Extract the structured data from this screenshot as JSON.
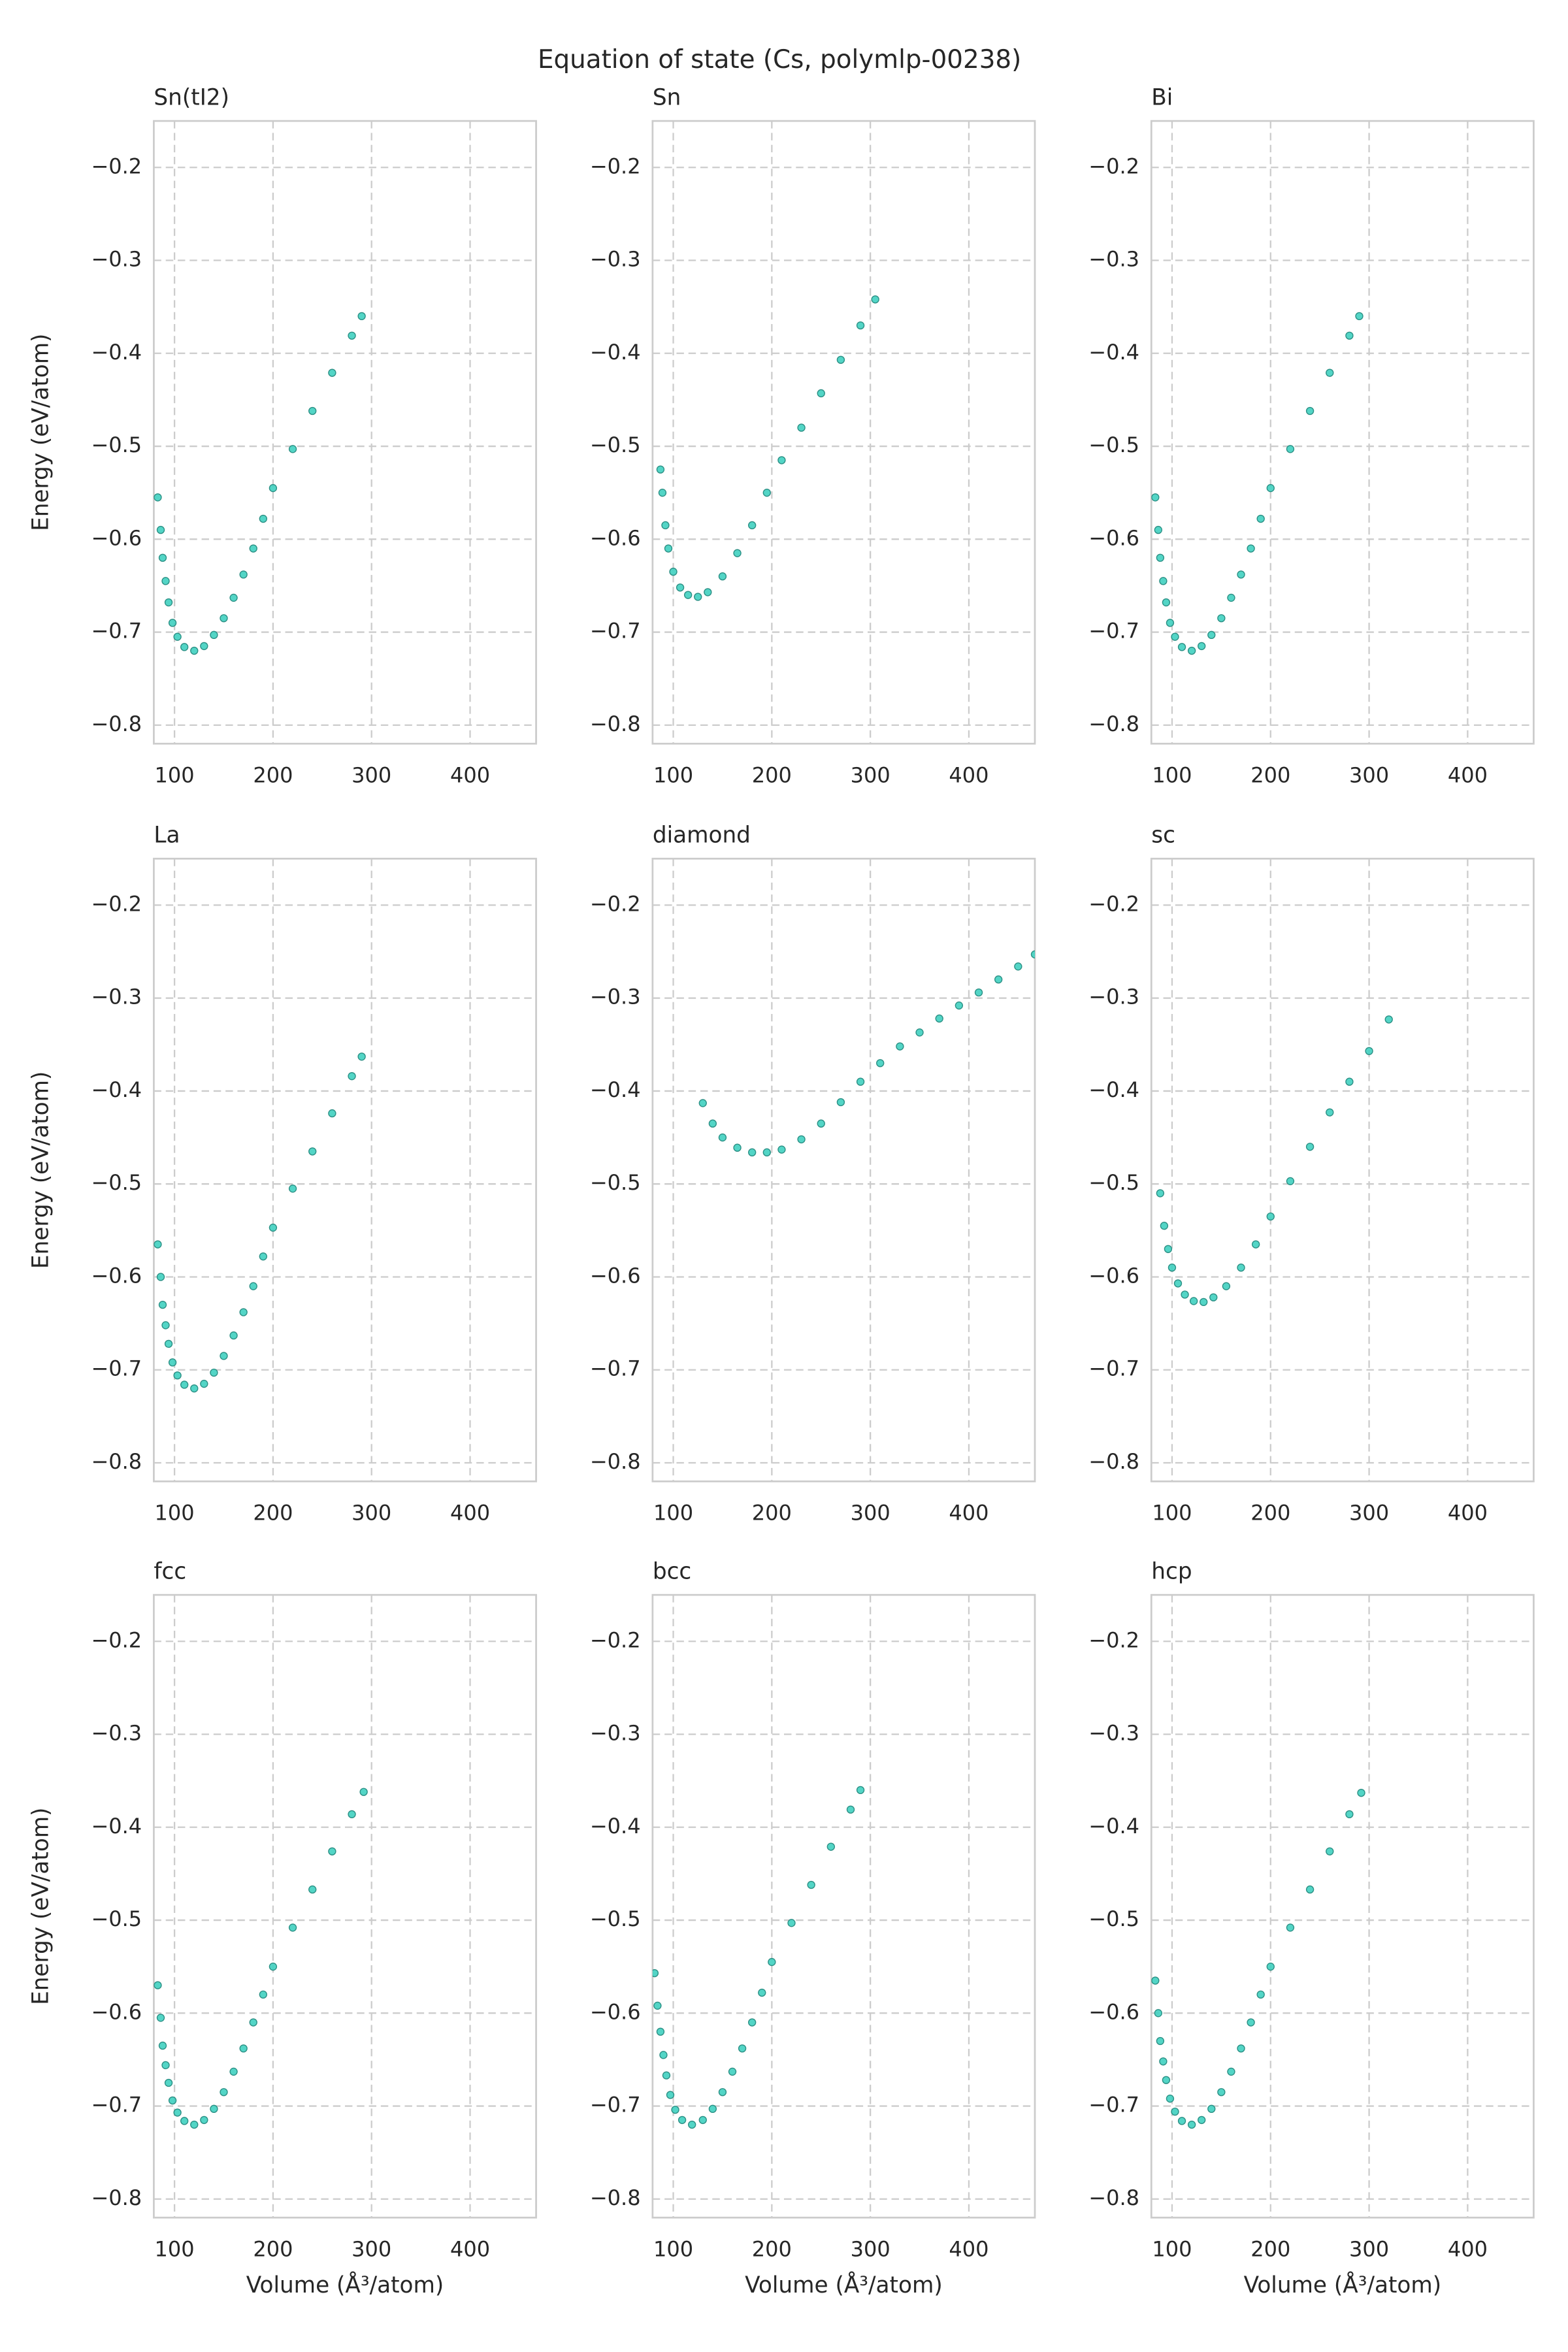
{
  "title": "Equation of state (Cs, polymlp-00238)",
  "chart_data": [
    {
      "type": "scatter",
      "title": "Sn(tI2)",
      "ylabel": "Energy (eV/atom)",
      "color": "#40d0c0",
      "x": [
        83,
        86,
        88,
        91,
        94,
        98,
        103,
        110,
        120,
        130,
        140,
        150,
        160,
        170,
        180,
        190,
        200,
        220,
        240,
        260,
        280,
        290
      ],
      "values": [
        -0.555,
        -0.59,
        -0.62,
        -0.645,
        -0.668,
        -0.69,
        -0.705,
        -0.716,
        -0.72,
        -0.715,
        -0.703,
        -0.685,
        -0.663,
        -0.638,
        -0.61,
        -0.578,
        -0.545,
        -0.503,
        -0.462,
        -0.421,
        -0.381,
        -0.36
      ],
      "xlim": [
        79,
        467
      ],
      "ylim": [
        -0.82,
        -0.15
      ],
      "xticks": [
        100,
        200,
        300,
        400
      ],
      "yticks": [
        {
          "value": -0.8,
          "label": "−0.8"
        },
        {
          "value": -0.7,
          "label": "−0.7"
        },
        {
          "value": -0.6,
          "label": "−0.6"
        },
        {
          "value": -0.5,
          "label": "−0.5"
        },
        {
          "value": -0.4,
          "label": "−0.4"
        },
        {
          "value": -0.3,
          "label": "−0.3"
        },
        {
          "value": -0.2,
          "label": "−0.2"
        }
      ],
      "grid": true
    },
    {
      "type": "scatter",
      "title": "Sn",
      "color": "#40d0c0",
      "x": [
        87,
        89,
        92,
        95,
        100,
        107,
        115,
        125,
        135,
        150,
        165,
        180,
        195,
        210,
        230,
        250,
        270,
        290,
        305
      ],
      "values": [
        -0.525,
        -0.55,
        -0.585,
        -0.61,
        -0.635,
        -0.652,
        -0.66,
        -0.662,
        -0.657,
        -0.64,
        -0.615,
        -0.585,
        -0.55,
        -0.515,
        -0.48,
        -0.443,
        -0.407,
        -0.37,
        -0.342
      ],
      "xlim": [
        79,
        467
      ],
      "ylim": [
        -0.82,
        -0.15
      ],
      "xticks": [
        100,
        200,
        300,
        400
      ],
      "yticks": [
        {
          "value": -0.8,
          "label": "−0.8"
        },
        {
          "value": -0.7,
          "label": "−0.7"
        },
        {
          "value": -0.6,
          "label": "−0.6"
        },
        {
          "value": -0.5,
          "label": "−0.5"
        },
        {
          "value": -0.4,
          "label": "−0.4"
        },
        {
          "value": -0.3,
          "label": "−0.3"
        },
        {
          "value": -0.2,
          "label": "−0.2"
        }
      ],
      "grid": true
    },
    {
      "type": "scatter",
      "title": "Bi",
      "color": "#40d0c0",
      "x": [
        83,
        86,
        88,
        91,
        94,
        98,
        103,
        110,
        120,
        130,
        140,
        150,
        160,
        170,
        180,
        190,
        200,
        220,
        240,
        260,
        280,
        290
      ],
      "values": [
        -0.555,
        -0.59,
        -0.62,
        -0.645,
        -0.668,
        -0.69,
        -0.705,
        -0.716,
        -0.72,
        -0.715,
        -0.703,
        -0.685,
        -0.663,
        -0.638,
        -0.61,
        -0.578,
        -0.545,
        -0.503,
        -0.462,
        -0.421,
        -0.381,
        -0.36
      ],
      "xlim": [
        79,
        467
      ],
      "ylim": [
        -0.82,
        -0.15
      ],
      "xticks": [
        100,
        200,
        300,
        400
      ],
      "yticks": [
        {
          "value": -0.8,
          "label": "−0.8"
        },
        {
          "value": -0.7,
          "label": "−0.7"
        },
        {
          "value": -0.6,
          "label": "−0.6"
        },
        {
          "value": -0.5,
          "label": "−0.5"
        },
        {
          "value": -0.4,
          "label": "−0.4"
        },
        {
          "value": -0.3,
          "label": "−0.3"
        },
        {
          "value": -0.2,
          "label": "−0.2"
        }
      ],
      "grid": true
    },
    {
      "type": "scatter",
      "title": "La",
      "ylabel": "Energy (eV/atom)",
      "color": "#40d0c0",
      "x": [
        83,
        86,
        88,
        91,
        94,
        98,
        103,
        110,
        120,
        130,
        140,
        150,
        160,
        170,
        180,
        190,
        200,
        220,
        240,
        260,
        280,
        290
      ],
      "values": [
        -0.565,
        -0.6,
        -0.63,
        -0.652,
        -0.672,
        -0.692,
        -0.706,
        -0.716,
        -0.72,
        -0.715,
        -0.703,
        -0.685,
        -0.663,
        -0.638,
        -0.61,
        -0.578,
        -0.547,
        -0.505,
        -0.465,
        -0.424,
        -0.384,
        -0.363
      ],
      "xlim": [
        79,
        467
      ],
      "ylim": [
        -0.82,
        -0.15
      ],
      "xticks": [
        100,
        200,
        300,
        400
      ],
      "yticks": [
        {
          "value": -0.8,
          "label": "−0.8"
        },
        {
          "value": -0.7,
          "label": "−0.7"
        },
        {
          "value": -0.6,
          "label": "−0.6"
        },
        {
          "value": -0.5,
          "label": "−0.5"
        },
        {
          "value": -0.4,
          "label": "−0.4"
        },
        {
          "value": -0.3,
          "label": "−0.3"
        },
        {
          "value": -0.2,
          "label": "−0.2"
        }
      ],
      "grid": true
    },
    {
      "type": "scatter",
      "title": "diamond",
      "color": "#40d0c0",
      "x": [
        130,
        140,
        150,
        165,
        180,
        195,
        210,
        230,
        250,
        270,
        290,
        310,
        330,
        350,
        370,
        390,
        410,
        430,
        450,
        467
      ],
      "values": [
        -0.413,
        -0.435,
        -0.45,
        -0.461,
        -0.466,
        -0.466,
        -0.463,
        -0.452,
        -0.435,
        -0.412,
        -0.39,
        -0.37,
        -0.352,
        -0.337,
        -0.322,
        -0.308,
        -0.294,
        -0.28,
        -0.266,
        -0.253
      ],
      "xlim": [
        79,
        467
      ],
      "ylim": [
        -0.82,
        -0.15
      ],
      "xticks": [
        100,
        200,
        300,
        400
      ],
      "yticks": [
        {
          "value": -0.8,
          "label": "−0.8"
        },
        {
          "value": -0.7,
          "label": "−0.7"
        },
        {
          "value": -0.6,
          "label": "−0.6"
        },
        {
          "value": -0.5,
          "label": "−0.5"
        },
        {
          "value": -0.4,
          "label": "−0.4"
        },
        {
          "value": -0.3,
          "label": "−0.3"
        },
        {
          "value": -0.2,
          "label": "−0.2"
        }
      ],
      "grid": true
    },
    {
      "type": "scatter",
      "title": "sc",
      "color": "#40d0c0",
      "x": [
        88,
        92,
        96,
        100,
        106,
        113,
        122,
        132,
        142,
        155,
        170,
        185,
        200,
        220,
        240,
        260,
        280,
        300,
        320
      ],
      "values": [
        -0.51,
        -0.545,
        -0.57,
        -0.59,
        -0.607,
        -0.619,
        -0.626,
        -0.627,
        -0.622,
        -0.61,
        -0.59,
        -0.565,
        -0.535,
        -0.497,
        -0.46,
        -0.423,
        -0.39,
        -0.357,
        -0.323
      ],
      "xlim": [
        79,
        467
      ],
      "ylim": [
        -0.82,
        -0.15
      ],
      "xticks": [
        100,
        200,
        300,
        400
      ],
      "yticks": [
        {
          "value": -0.8,
          "label": "−0.8"
        },
        {
          "value": -0.7,
          "label": "−0.7"
        },
        {
          "value": -0.6,
          "label": "−0.6"
        },
        {
          "value": -0.5,
          "label": "−0.5"
        },
        {
          "value": -0.4,
          "label": "−0.4"
        },
        {
          "value": -0.3,
          "label": "−0.3"
        },
        {
          "value": -0.2,
          "label": "−0.2"
        }
      ],
      "grid": true
    },
    {
      "type": "scatter",
      "title": "fcc",
      "ylabel": "Energy (eV/atom)",
      "xlabel": "Volume (Å³/atom)",
      "color": "#40d0c0",
      "x": [
        83,
        86,
        88,
        91,
        94,
        98,
        103,
        110,
        120,
        130,
        140,
        150,
        160,
        170,
        180,
        190,
        200,
        220,
        240,
        260,
        280,
        292
      ],
      "values": [
        -0.57,
        -0.605,
        -0.635,
        -0.656,
        -0.675,
        -0.694,
        -0.707,
        -0.716,
        -0.72,
        -0.715,
        -0.703,
        -0.685,
        -0.663,
        -0.638,
        -0.61,
        -0.58,
        -0.55,
        -0.508,
        -0.467,
        -0.426,
        -0.386,
        -0.362
      ],
      "xlim": [
        79,
        467
      ],
      "ylim": [
        -0.82,
        -0.15
      ],
      "xticks": [
        100,
        200,
        300,
        400
      ],
      "yticks": [
        {
          "value": -0.8,
          "label": "−0.8"
        },
        {
          "value": -0.7,
          "label": "−0.7"
        },
        {
          "value": -0.6,
          "label": "−0.6"
        },
        {
          "value": -0.5,
          "label": "−0.5"
        },
        {
          "value": -0.4,
          "label": "−0.4"
        },
        {
          "value": -0.3,
          "label": "−0.3"
        },
        {
          "value": -0.2,
          "label": "−0.2"
        }
      ],
      "grid": true
    },
    {
      "type": "scatter",
      "title": "bcc",
      "xlabel": "Volume (Å³/atom)",
      "color": "#40d0c0",
      "x": [
        81,
        84,
        87,
        90,
        93,
        97,
        102,
        109,
        119,
        130,
        140,
        150,
        160,
        170,
        180,
        190,
        200,
        220,
        240,
        260,
        280,
        290
      ],
      "values": [
        -0.557,
        -0.592,
        -0.62,
        -0.645,
        -0.667,
        -0.688,
        -0.704,
        -0.715,
        -0.72,
        -0.715,
        -0.703,
        -0.685,
        -0.663,
        -0.638,
        -0.61,
        -0.578,
        -0.545,
        -0.503,
        -0.462,
        -0.421,
        -0.381,
        -0.36
      ],
      "xlim": [
        79,
        467
      ],
      "ylim": [
        -0.82,
        -0.15
      ],
      "xticks": [
        100,
        200,
        300,
        400
      ],
      "yticks": [
        {
          "value": -0.8,
          "label": "−0.8"
        },
        {
          "value": -0.7,
          "label": "−0.7"
        },
        {
          "value": -0.6,
          "label": "−0.6"
        },
        {
          "value": -0.5,
          "label": "−0.5"
        },
        {
          "value": -0.4,
          "label": "−0.4"
        },
        {
          "value": -0.3,
          "label": "−0.3"
        },
        {
          "value": -0.2,
          "label": "−0.2"
        }
      ],
      "grid": true
    },
    {
      "type": "scatter",
      "title": "hcp",
      "xlabel": "Volume (Å³/atom)",
      "color": "#40d0c0",
      "x": [
        83,
        86,
        88,
        91,
        94,
        98,
        103,
        110,
        120,
        130,
        140,
        150,
        160,
        170,
        180,
        190,
        200,
        220,
        240,
        260,
        280,
        292
      ],
      "values": [
        -0.565,
        -0.6,
        -0.63,
        -0.652,
        -0.672,
        -0.692,
        -0.706,
        -0.716,
        -0.72,
        -0.715,
        -0.703,
        -0.685,
        -0.663,
        -0.638,
        -0.61,
        -0.58,
        -0.55,
        -0.508,
        -0.467,
        -0.426,
        -0.386,
        -0.363
      ],
      "xlim": [
        79,
        467
      ],
      "ylim": [
        -0.82,
        -0.15
      ],
      "xticks": [
        100,
        200,
        300,
        400
      ],
      "yticks": [
        {
          "value": -0.8,
          "label": "−0.8"
        },
        {
          "value": -0.7,
          "label": "−0.7"
        },
        {
          "value": -0.6,
          "label": "−0.6"
        },
        {
          "value": -0.5,
          "label": "−0.5"
        },
        {
          "value": -0.4,
          "label": "−0.4"
        },
        {
          "value": -0.3,
          "label": "−0.3"
        },
        {
          "value": -0.2,
          "label": "−0.2"
        }
      ],
      "grid": true
    }
  ]
}
